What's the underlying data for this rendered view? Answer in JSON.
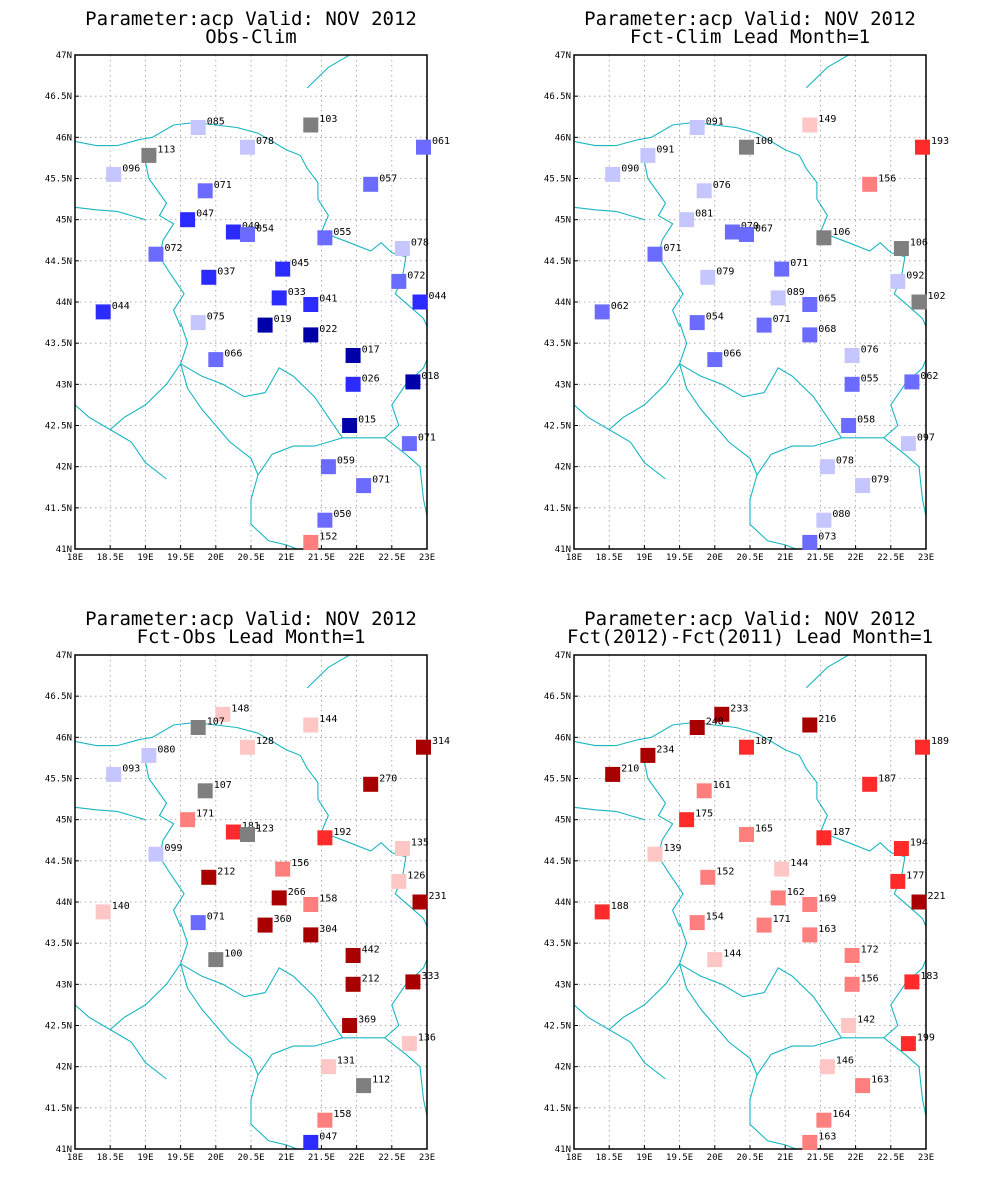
{
  "panels": [
    {
      "title1": "Parameter:acp Valid: NOV 2012",
      "title2": "Obs-Clim",
      "stations": [
        {
          "lon": 19.75,
          "lat": 46.12,
          "label": "085",
          "color": "#c6c6ff"
        },
        {
          "lon": 21.35,
          "lat": 46.15,
          "label": "103",
          "color": "#7f7f7f"
        },
        {
          "lon": 22.95,
          "lat": 45.88,
          "label": "061",
          "color": "#6b6bff"
        },
        {
          "lon": 19.05,
          "lat": 45.78,
          "label": "113",
          "color": "#7f7f7f"
        },
        {
          "lon": 20.45,
          "lat": 45.88,
          "label": "078",
          "color": "#c6c6ff"
        },
        {
          "lon": 18.55,
          "lat": 45.55,
          "label": "096",
          "color": "#c6c6ff"
        },
        {
          "lon": 22.2,
          "lat": 45.43,
          "label": "057",
          "color": "#6b6bff"
        },
        {
          "lon": 19.85,
          "lat": 45.35,
          "label": "071",
          "color": "#6b6bff"
        },
        {
          "lon": 19.6,
          "lat": 45.0,
          "label": "047",
          "color": "#2b2bff"
        },
        {
          "lon": 20.25,
          "lat": 44.85,
          "label": "040",
          "color": "#2b2bff"
        },
        {
          "lon": 20.45,
          "lat": 44.82,
          "label": "054",
          "color": "#6b6bff"
        },
        {
          "lon": 21.55,
          "lat": 44.78,
          "label": "055",
          "color": "#6b6bff"
        },
        {
          "lon": 22.65,
          "lat": 44.65,
          "label": "078",
          "color": "#c6c6ff"
        },
        {
          "lon": 19.15,
          "lat": 44.58,
          "label": "072",
          "color": "#6b6bff"
        },
        {
          "lon": 20.95,
          "lat": 44.4,
          "label": "045",
          "color": "#2b2bff"
        },
        {
          "lon": 19.9,
          "lat": 44.3,
          "label": "037",
          "color": "#2b2bff"
        },
        {
          "lon": 22.6,
          "lat": 44.25,
          "label": "072",
          "color": "#6b6bff"
        },
        {
          "lon": 20.9,
          "lat": 44.05,
          "label": "033",
          "color": "#2b2bff"
        },
        {
          "lon": 21.35,
          "lat": 43.97,
          "label": "041",
          "color": "#2b2bff"
        },
        {
          "lon": 22.9,
          "lat": 44.0,
          "label": "044",
          "color": "#2b2bff"
        },
        {
          "lon": 18.4,
          "lat": 43.88,
          "label": "044",
          "color": "#2b2bff"
        },
        {
          "lon": 19.75,
          "lat": 43.75,
          "label": "075",
          "color": "#c6c6ff"
        },
        {
          "lon": 20.7,
          "lat": 43.72,
          "label": "019",
          "color": "#0000a8"
        },
        {
          "lon": 21.35,
          "lat": 43.6,
          "label": "022",
          "color": "#0000a8"
        },
        {
          "lon": 21.95,
          "lat": 43.35,
          "label": "017",
          "color": "#0000a8"
        },
        {
          "lon": 20.0,
          "lat": 43.3,
          "label": "066",
          "color": "#6b6bff"
        },
        {
          "lon": 21.95,
          "lat": 43.0,
          "label": "026",
          "color": "#2b2bff"
        },
        {
          "lon": 22.8,
          "lat": 43.03,
          "label": "018",
          "color": "#0000a8"
        },
        {
          "lon": 21.9,
          "lat": 42.5,
          "label": "015",
          "color": "#0000a8"
        },
        {
          "lon": 22.75,
          "lat": 42.28,
          "label": "071",
          "color": "#6b6bff"
        },
        {
          "lon": 21.6,
          "lat": 42.0,
          "label": "059",
          "color": "#6b6bff"
        },
        {
          "lon": 22.1,
          "lat": 41.77,
          "label": "071",
          "color": "#6b6bff"
        },
        {
          "lon": 21.55,
          "lat": 41.35,
          "label": "050",
          "color": "#6b6bff"
        },
        {
          "lon": 21.35,
          "lat": 41.08,
          "label": "152",
          "color": "#ff7f7f"
        }
      ]
    },
    {
      "title1": "Parameter:acp Valid: NOV 2012",
      "title2": "Fct-Clim Lead Month=1",
      "stations": [
        {
          "lon": 19.75,
          "lat": 46.12,
          "label": "091",
          "color": "#c6c6ff"
        },
        {
          "lon": 21.35,
          "lat": 46.15,
          "label": "149",
          "color": "#ffc6c6"
        },
        {
          "lon": 22.95,
          "lat": 45.88,
          "label": "193",
          "color": "#ff2b2b"
        },
        {
          "lon": 19.05,
          "lat": 45.78,
          "label": "091",
          "color": "#c6c6ff"
        },
        {
          "lon": 20.45,
          "lat": 45.88,
          "label": "100",
          "color": "#7f7f7f"
        },
        {
          "lon": 18.55,
          "lat": 45.55,
          "label": "090",
          "color": "#c6c6ff"
        },
        {
          "lon": 22.2,
          "lat": 45.43,
          "label": "156",
          "color": "#ff7f7f"
        },
        {
          "lon": 19.85,
          "lat": 45.35,
          "label": "076",
          "color": "#c6c6ff"
        },
        {
          "lon": 19.6,
          "lat": 45.0,
          "label": "081",
          "color": "#c6c6ff"
        },
        {
          "lon": 20.25,
          "lat": 44.85,
          "label": "070",
          "color": "#6b6bff"
        },
        {
          "lon": 20.45,
          "lat": 44.82,
          "label": "067",
          "color": "#6b6bff"
        },
        {
          "lon": 21.55,
          "lat": 44.78,
          "label": "106",
          "color": "#7f7f7f"
        },
        {
          "lon": 22.65,
          "lat": 44.65,
          "label": "106",
          "color": "#7f7f7f"
        },
        {
          "lon": 19.15,
          "lat": 44.58,
          "label": "071",
          "color": "#6b6bff"
        },
        {
          "lon": 20.95,
          "lat": 44.4,
          "label": "071",
          "color": "#6b6bff"
        },
        {
          "lon": 19.9,
          "lat": 44.3,
          "label": "079",
          "color": "#c6c6ff"
        },
        {
          "lon": 22.6,
          "lat": 44.25,
          "label": "092",
          "color": "#c6c6ff"
        },
        {
          "lon": 20.9,
          "lat": 44.05,
          "label": "089",
          "color": "#c6c6ff"
        },
        {
          "lon": 21.35,
          "lat": 43.97,
          "label": "065",
          "color": "#6b6bff"
        },
        {
          "lon": 22.9,
          "lat": 44.0,
          "label": "102",
          "color": "#7f7f7f"
        },
        {
          "lon": 18.4,
          "lat": 43.88,
          "label": "062",
          "color": "#6b6bff"
        },
        {
          "lon": 19.75,
          "lat": 43.75,
          "label": "054",
          "color": "#6b6bff"
        },
        {
          "lon": 20.7,
          "lat": 43.72,
          "label": "071",
          "color": "#6b6bff"
        },
        {
          "lon": 21.35,
          "lat": 43.6,
          "label": "068",
          "color": "#6b6bff"
        },
        {
          "lon": 21.95,
          "lat": 43.35,
          "label": "076",
          "color": "#c6c6ff"
        },
        {
          "lon": 20.0,
          "lat": 43.3,
          "label": "066",
          "color": "#6b6bff"
        },
        {
          "lon": 21.95,
          "lat": 43.0,
          "label": "055",
          "color": "#6b6bff"
        },
        {
          "lon": 22.8,
          "lat": 43.03,
          "label": "062",
          "color": "#6b6bff"
        },
        {
          "lon": 21.9,
          "lat": 42.5,
          "label": "058",
          "color": "#6b6bff"
        },
        {
          "lon": 22.75,
          "lat": 42.28,
          "label": "097",
          "color": "#c6c6ff"
        },
        {
          "lon": 21.6,
          "lat": 42.0,
          "label": "078",
          "color": "#c6c6ff"
        },
        {
          "lon": 22.1,
          "lat": 41.77,
          "label": "079",
          "color": "#c6c6ff"
        },
        {
          "lon": 21.55,
          "lat": 41.35,
          "label": "080",
          "color": "#c6c6ff"
        },
        {
          "lon": 21.35,
          "lat": 41.08,
          "label": "073",
          "color": "#6b6bff"
        }
      ]
    },
    {
      "title1": "Parameter:acp Valid: NOV 2012",
      "title2": "Fct-Obs Lead Month=1",
      "stations": [
        {
          "lon": 20.1,
          "lat": 46.28,
          "label": "148",
          "color": "#ffc6c6"
        },
        {
          "lon": 19.75,
          "lat": 46.12,
          "label": "107",
          "color": "#7f7f7f"
        },
        {
          "lon": 21.35,
          "lat": 46.15,
          "label": "144",
          "color": "#ffc6c6"
        },
        {
          "lon": 22.95,
          "lat": 45.88,
          "label": "314",
          "color": "#a80000"
        },
        {
          "lon": 19.05,
          "lat": 45.78,
          "label": "080",
          "color": "#c6c6ff"
        },
        {
          "lon": 20.45,
          "lat": 45.88,
          "label": "128",
          "color": "#ffc6c6"
        },
        {
          "lon": 18.55,
          "lat": 45.55,
          "label": "093",
          "color": "#c6c6ff"
        },
        {
          "lon": 22.2,
          "lat": 45.43,
          "label": "270",
          "color": "#a80000"
        },
        {
          "lon": 19.85,
          "lat": 45.35,
          "label": "107",
          "color": "#7f7f7f"
        },
        {
          "lon": 19.6,
          "lat": 45.0,
          "label": "171",
          "color": "#ff7f7f"
        },
        {
          "lon": 20.25,
          "lat": 44.85,
          "label": "181",
          "color": "#ff2b2b"
        },
        {
          "lon": 20.45,
          "lat": 44.82,
          "label": "123",
          "color": "#7f7f7f"
        },
        {
          "lon": 21.55,
          "lat": 44.78,
          "label": "192",
          "color": "#ff2b2b"
        },
        {
          "lon": 22.65,
          "lat": 44.65,
          "label": "135",
          "color": "#ffc6c6"
        },
        {
          "lon": 19.15,
          "lat": 44.58,
          "label": "099",
          "color": "#c6c6ff"
        },
        {
          "lon": 20.95,
          "lat": 44.4,
          "label": "156",
          "color": "#ff7f7f"
        },
        {
          "lon": 19.9,
          "lat": 44.3,
          "label": "212",
          "color": "#a80000"
        },
        {
          "lon": 22.6,
          "lat": 44.25,
          "label": "126",
          "color": "#ffc6c6"
        },
        {
          "lon": 20.9,
          "lat": 44.05,
          "label": "266",
          "color": "#a80000"
        },
        {
          "lon": 21.35,
          "lat": 43.97,
          "label": "158",
          "color": "#ff7f7f"
        },
        {
          "lon": 22.9,
          "lat": 44.0,
          "label": "231",
          "color": "#a80000"
        },
        {
          "lon": 18.4,
          "lat": 43.88,
          "label": "140",
          "color": "#ffc6c6"
        },
        {
          "lon": 19.75,
          "lat": 43.75,
          "label": "071",
          "color": "#6b6bff"
        },
        {
          "lon": 20.7,
          "lat": 43.72,
          "label": "360",
          "color": "#a80000"
        },
        {
          "lon": 21.35,
          "lat": 43.6,
          "label": "304",
          "color": "#a80000"
        },
        {
          "lon": 21.95,
          "lat": 43.35,
          "label": "442",
          "color": "#a80000"
        },
        {
          "lon": 20.0,
          "lat": 43.3,
          "label": "100",
          "color": "#7f7f7f"
        },
        {
          "lon": 21.95,
          "lat": 43.0,
          "label": "212",
          "color": "#a80000"
        },
        {
          "lon": 22.8,
          "lat": 43.03,
          "label": "333",
          "color": "#a80000"
        },
        {
          "lon": 21.9,
          "lat": 42.5,
          "label": "369",
          "color": "#a80000"
        },
        {
          "lon": 22.75,
          "lat": 42.28,
          "label": "136",
          "color": "#ffc6c6"
        },
        {
          "lon": 21.6,
          "lat": 42.0,
          "label": "131",
          "color": "#ffc6c6"
        },
        {
          "lon": 22.1,
          "lat": 41.77,
          "label": "112",
          "color": "#7f7f7f"
        },
        {
          "lon": 21.55,
          "lat": 41.35,
          "label": "158",
          "color": "#ff7f7f"
        },
        {
          "lon": 21.35,
          "lat": 41.08,
          "label": "047",
          "color": "#2b2bff"
        }
      ]
    },
    {
      "title1": "Parameter:acp Valid: NOV 2012",
      "title2": "Fct(2012)-Fct(2011) Lead Month=1",
      "stations": [
        {
          "lon": 20.1,
          "lat": 46.28,
          "label": "233",
          "color": "#a80000"
        },
        {
          "lon": 19.75,
          "lat": 46.12,
          "label": "248",
          "color": "#a80000"
        },
        {
          "lon": 21.35,
          "lat": 46.15,
          "label": "216",
          "color": "#a80000"
        },
        {
          "lon": 22.95,
          "lat": 45.88,
          "label": "189",
          "color": "#ff2b2b"
        },
        {
          "lon": 19.05,
          "lat": 45.78,
          "label": "234",
          "color": "#a80000"
        },
        {
          "lon": 20.45,
          "lat": 45.88,
          "label": "187",
          "color": "#ff2b2b"
        },
        {
          "lon": 18.55,
          "lat": 45.55,
          "label": "210",
          "color": "#a80000"
        },
        {
          "lon": 22.2,
          "lat": 45.43,
          "label": "187",
          "color": "#ff2b2b"
        },
        {
          "lon": 19.85,
          "lat": 45.35,
          "label": "161",
          "color": "#ff7f7f"
        },
        {
          "lon": 19.6,
          "lat": 45.0,
          "label": "175",
          "color": "#ff2b2b"
        },
        {
          "lon": 20.45,
          "lat": 44.82,
          "label": "165",
          "color": "#ff7f7f"
        },
        {
          "lon": 21.55,
          "lat": 44.78,
          "label": "187",
          "color": "#ff2b2b"
        },
        {
          "lon": 22.65,
          "lat": 44.65,
          "label": "194",
          "color": "#ff2b2b"
        },
        {
          "lon": 19.15,
          "lat": 44.58,
          "label": "139",
          "color": "#ffc6c6"
        },
        {
          "lon": 20.95,
          "lat": 44.4,
          "label": "144",
          "color": "#ffc6c6"
        },
        {
          "lon": 19.9,
          "lat": 44.3,
          "label": "152",
          "color": "#ff7f7f"
        },
        {
          "lon": 22.6,
          "lat": 44.25,
          "label": "177",
          "color": "#ff2b2b"
        },
        {
          "lon": 20.9,
          "lat": 44.05,
          "label": "162",
          "color": "#ff7f7f"
        },
        {
          "lon": 21.35,
          "lat": 43.97,
          "label": "169",
          "color": "#ff7f7f"
        },
        {
          "lon": 22.9,
          "lat": 44.0,
          "label": "221",
          "color": "#a80000"
        },
        {
          "lon": 18.4,
          "lat": 43.88,
          "label": "188",
          "color": "#ff2b2b"
        },
        {
          "lon": 19.75,
          "lat": 43.75,
          "label": "154",
          "color": "#ff7f7f"
        },
        {
          "lon": 20.7,
          "lat": 43.72,
          "label": "171",
          "color": "#ff7f7f"
        },
        {
          "lon": 21.35,
          "lat": 43.6,
          "label": "163",
          "color": "#ff7f7f"
        },
        {
          "lon": 21.95,
          "lat": 43.35,
          "label": "172",
          "color": "#ff7f7f"
        },
        {
          "lon": 20.0,
          "lat": 43.3,
          "label": "144",
          "color": "#ffc6c6"
        },
        {
          "lon": 21.95,
          "lat": 43.0,
          "label": "156",
          "color": "#ff7f7f"
        },
        {
          "lon": 22.8,
          "lat": 43.03,
          "label": "183",
          "color": "#ff2b2b"
        },
        {
          "lon": 21.9,
          "lat": 42.5,
          "label": "142",
          "color": "#ffc6c6"
        },
        {
          "lon": 22.75,
          "lat": 42.28,
          "label": "199",
          "color": "#ff2b2b"
        },
        {
          "lon": 21.6,
          "lat": 42.0,
          "label": "146",
          "color": "#ffc6c6"
        },
        {
          "lon": 22.1,
          "lat": 41.77,
          "label": "163",
          "color": "#ff7f7f"
        },
        {
          "lon": 21.55,
          "lat": 41.35,
          "label": "164",
          "color": "#ff7f7f"
        },
        {
          "lon": 21.35,
          "lat": 41.08,
          "label": "163",
          "color": "#ff7f7f"
        }
      ]
    }
  ],
  "axes": {
    "lon_range": [
      18,
      23
    ],
    "lat_range": [
      41,
      47
    ],
    "lon_ticks": [
      {
        "v": 18,
        "label": "18E"
      },
      {
        "v": 18.5,
        "label": "18.5E"
      },
      {
        "v": 19,
        "label": "19E"
      },
      {
        "v": 19.5,
        "label": "19.5E"
      },
      {
        "v": 20,
        "label": "20E"
      },
      {
        "v": 20.5,
        "label": "20.5E"
      },
      {
        "v": 21,
        "label": "21E"
      },
      {
        "v": 21.5,
        "label": "21.5E"
      },
      {
        "v": 22,
        "label": "22E"
      },
      {
        "v": 22.5,
        "label": "22.5E"
      },
      {
        "v": 23,
        "label": "23E"
      }
    ],
    "lat_ticks": [
      {
        "v": 41,
        "label": "41N"
      },
      {
        "v": 41.5,
        "label": "41.5N"
      },
      {
        "v": 42,
        "label": "42N"
      },
      {
        "v": 42.5,
        "label": "42.5N"
      },
      {
        "v": 43,
        "label": "43N"
      },
      {
        "v": 43.5,
        "label": "43.5N"
      },
      {
        "v": 44,
        "label": "44N"
      },
      {
        "v": 44.5,
        "label": "44.5N"
      },
      {
        "v": 45,
        "label": "45N"
      },
      {
        "v": 45.5,
        "label": "45.5N"
      },
      {
        "v": 46,
        "label": "46N"
      },
      {
        "v": 46.5,
        "label": "46.5N"
      },
      {
        "v": 47,
        "label": "47N"
      }
    ]
  },
  "colors": {
    "border": "#19b6c2",
    "grid": "#9a9a9a"
  }
}
